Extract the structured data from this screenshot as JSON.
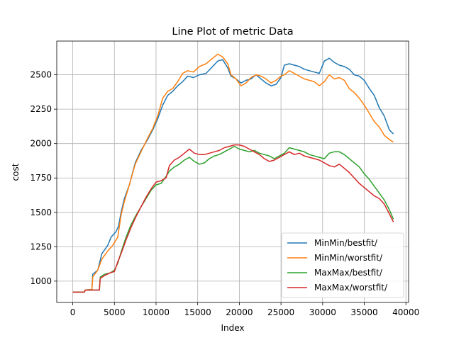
{
  "chart_data": {
    "type": "line",
    "title": "Line Plot of metric Data",
    "xlabel": "Index",
    "ylabel": "cost",
    "xlim": [
      -1920,
      40320
    ],
    "ylim": [
      845,
      2745
    ],
    "xticks": [
      0,
      5000,
      10000,
      15000,
      20000,
      25000,
      30000,
      35000,
      40000
    ],
    "yticks": [
      1000,
      1250,
      1500,
      1750,
      2000,
      2250,
      2500
    ],
    "grid": true,
    "legend_position": "lower right",
    "series": [
      {
        "name": "MinMin/bestfit/",
        "color": "#1f77b4",
        "points": [
          [
            0,
            920
          ],
          [
            1400,
            920
          ],
          [
            1500,
            935
          ],
          [
            2300,
            940
          ],
          [
            2400,
            1050
          ],
          [
            3000,
            1080
          ],
          [
            3500,
            1200
          ],
          [
            4200,
            1260
          ],
          [
            4600,
            1320
          ],
          [
            5200,
            1360
          ],
          [
            5500,
            1400
          ],
          [
            5800,
            1500
          ],
          [
            6200,
            1600
          ],
          [
            6800,
            1700
          ],
          [
            7500,
            1860
          ],
          [
            8200,
            1950
          ],
          [
            9000,
            2030
          ],
          [
            9600,
            2100
          ],
          [
            10200,
            2180
          ],
          [
            10800,
            2280
          ],
          [
            11400,
            2350
          ],
          [
            12000,
            2380
          ],
          [
            12600,
            2420
          ],
          [
            13200,
            2450
          ],
          [
            13800,
            2490
          ],
          [
            14500,
            2480
          ],
          [
            15200,
            2500
          ],
          [
            16000,
            2510
          ],
          [
            16800,
            2560
          ],
          [
            17400,
            2600
          ],
          [
            18000,
            2610
          ],
          [
            18600,
            2550
          ],
          [
            19000,
            2490
          ],
          [
            19600,
            2470
          ],
          [
            20200,
            2440
          ],
          [
            20800,
            2460
          ],
          [
            21400,
            2470
          ],
          [
            22000,
            2500
          ],
          [
            22600,
            2470
          ],
          [
            23200,
            2440
          ],
          [
            23800,
            2420
          ],
          [
            24400,
            2430
          ],
          [
            25000,
            2480
          ],
          [
            25400,
            2570
          ],
          [
            26000,
            2580
          ],
          [
            26600,
            2570
          ],
          [
            27200,
            2560
          ],
          [
            27800,
            2540
          ],
          [
            28400,
            2530
          ],
          [
            29000,
            2520
          ],
          [
            29600,
            2510
          ],
          [
            30200,
            2600
          ],
          [
            30800,
            2620
          ],
          [
            31400,
            2590
          ],
          [
            32000,
            2570
          ],
          [
            32600,
            2560
          ],
          [
            33200,
            2540
          ],
          [
            33800,
            2500
          ],
          [
            34400,
            2490
          ],
          [
            35000,
            2460
          ],
          [
            35600,
            2400
          ],
          [
            36200,
            2350
          ],
          [
            36800,
            2260
          ],
          [
            37400,
            2200
          ],
          [
            38000,
            2100
          ],
          [
            38500,
            2070
          ]
        ]
      },
      {
        "name": "MinMin/worstfit/",
        "color": "#ff7f0e",
        "points": [
          [
            0,
            920
          ],
          [
            1400,
            920
          ],
          [
            1500,
            935
          ],
          [
            2300,
            940
          ],
          [
            2400,
            1030
          ],
          [
            3000,
            1080
          ],
          [
            3500,
            1160
          ],
          [
            4200,
            1220
          ],
          [
            4800,
            1260
          ],
          [
            5400,
            1320
          ],
          [
            5800,
            1480
          ],
          [
            6200,
            1580
          ],
          [
            6800,
            1700
          ],
          [
            7500,
            1850
          ],
          [
            8200,
            1940
          ],
          [
            9000,
            2040
          ],
          [
            9600,
            2110
          ],
          [
            10200,
            2200
          ],
          [
            10800,
            2330
          ],
          [
            11400,
            2380
          ],
          [
            12000,
            2400
          ],
          [
            12600,
            2450
          ],
          [
            13200,
            2510
          ],
          [
            13800,
            2530
          ],
          [
            14500,
            2520
          ],
          [
            15200,
            2560
          ],
          [
            16000,
            2580
          ],
          [
            16800,
            2620
          ],
          [
            17400,
            2650
          ],
          [
            18000,
            2630
          ],
          [
            18600,
            2580
          ],
          [
            19000,
            2500
          ],
          [
            19600,
            2470
          ],
          [
            20200,
            2420
          ],
          [
            20800,
            2440
          ],
          [
            21400,
            2480
          ],
          [
            22000,
            2500
          ],
          [
            22600,
            2490
          ],
          [
            23200,
            2470
          ],
          [
            23800,
            2440
          ],
          [
            24400,
            2460
          ],
          [
            25000,
            2490
          ],
          [
            25400,
            2500
          ],
          [
            26000,
            2530
          ],
          [
            26600,
            2510
          ],
          [
            27200,
            2490
          ],
          [
            27800,
            2470
          ],
          [
            28400,
            2460
          ],
          [
            29000,
            2450
          ],
          [
            29600,
            2420
          ],
          [
            30200,
            2450
          ],
          [
            30800,
            2500
          ],
          [
            31400,
            2470
          ],
          [
            32000,
            2480
          ],
          [
            32600,
            2460
          ],
          [
            33200,
            2400
          ],
          [
            33800,
            2370
          ],
          [
            34400,
            2330
          ],
          [
            35000,
            2280
          ],
          [
            35600,
            2220
          ],
          [
            36200,
            2160
          ],
          [
            36800,
            2120
          ],
          [
            37400,
            2060
          ],
          [
            38000,
            2030
          ],
          [
            38500,
            2010
          ]
        ]
      },
      {
        "name": "MaxMax/bestfit/",
        "color": "#2ca02c",
        "points": [
          [
            0,
            920
          ],
          [
            1400,
            920
          ],
          [
            1500,
            935
          ],
          [
            3200,
            935
          ],
          [
            3300,
            1030
          ],
          [
            3800,
            1050
          ],
          [
            4500,
            1060
          ],
          [
            5000,
            1080
          ],
          [
            5400,
            1130
          ],
          [
            5800,
            1210
          ],
          [
            6400,
            1320
          ],
          [
            7000,
            1410
          ],
          [
            7600,
            1480
          ],
          [
            8200,
            1540
          ],
          [
            8800,
            1600
          ],
          [
            9400,
            1660
          ],
          [
            10000,
            1700
          ],
          [
            10600,
            1710
          ],
          [
            11200,
            1760
          ],
          [
            11600,
            1800
          ],
          [
            12200,
            1830
          ],
          [
            12800,
            1850
          ],
          [
            13400,
            1880
          ],
          [
            14000,
            1900
          ],
          [
            14600,
            1870
          ],
          [
            15200,
            1850
          ],
          [
            15800,
            1860
          ],
          [
            16400,
            1890
          ],
          [
            17000,
            1910
          ],
          [
            17600,
            1920
          ],
          [
            18200,
            1940
          ],
          [
            18800,
            1960
          ],
          [
            19400,
            1980
          ],
          [
            20000,
            1960
          ],
          [
            20600,
            1950
          ],
          [
            21200,
            1940
          ],
          [
            21800,
            1950
          ],
          [
            22400,
            1930
          ],
          [
            23000,
            1920
          ],
          [
            23600,
            1910
          ],
          [
            24200,
            1890
          ],
          [
            24800,
            1910
          ],
          [
            25400,
            1930
          ],
          [
            26000,
            1970
          ],
          [
            26600,
            1960
          ],
          [
            27200,
            1950
          ],
          [
            27800,
            1940
          ],
          [
            28400,
            1920
          ],
          [
            29000,
            1910
          ],
          [
            29600,
            1900
          ],
          [
            30200,
            1890
          ],
          [
            30800,
            1930
          ],
          [
            31400,
            1940
          ],
          [
            32000,
            1940
          ],
          [
            32600,
            1920
          ],
          [
            33200,
            1890
          ],
          [
            33800,
            1860
          ],
          [
            34400,
            1830
          ],
          [
            35000,
            1780
          ],
          [
            35600,
            1740
          ],
          [
            36200,
            1690
          ],
          [
            36800,
            1640
          ],
          [
            37400,
            1590
          ],
          [
            38000,
            1520
          ],
          [
            38500,
            1450
          ]
        ]
      },
      {
        "name": "MaxMax/worstfit/",
        "color": "#d62728",
        "points": [
          [
            0,
            920
          ],
          [
            1400,
            920
          ],
          [
            1500,
            935
          ],
          [
            3200,
            935
          ],
          [
            3300,
            1020
          ],
          [
            3800,
            1040
          ],
          [
            4500,
            1060
          ],
          [
            5000,
            1070
          ],
          [
            5400,
            1140
          ],
          [
            5800,
            1200
          ],
          [
            6400,
            1300
          ],
          [
            7000,
            1390
          ],
          [
            7600,
            1470
          ],
          [
            8200,
            1540
          ],
          [
            8800,
            1610
          ],
          [
            9400,
            1670
          ],
          [
            10000,
            1720
          ],
          [
            10600,
            1730
          ],
          [
            11200,
            1750
          ],
          [
            11600,
            1840
          ],
          [
            12200,
            1880
          ],
          [
            12800,
            1900
          ],
          [
            13400,
            1930
          ],
          [
            14000,
            1960
          ],
          [
            14600,
            1930
          ],
          [
            15200,
            1920
          ],
          [
            15800,
            1920
          ],
          [
            16400,
            1930
          ],
          [
            17000,
            1940
          ],
          [
            17600,
            1950
          ],
          [
            18200,
            1970
          ],
          [
            18800,
            1980
          ],
          [
            19400,
            1990
          ],
          [
            20000,
            1990
          ],
          [
            20600,
            1980
          ],
          [
            21200,
            1960
          ],
          [
            21800,
            1940
          ],
          [
            22400,
            1920
          ],
          [
            23000,
            1890
          ],
          [
            23600,
            1870
          ],
          [
            24200,
            1880
          ],
          [
            24800,
            1900
          ],
          [
            25400,
            1920
          ],
          [
            26000,
            1940
          ],
          [
            26600,
            1920
          ],
          [
            27200,
            1930
          ],
          [
            27800,
            1910
          ],
          [
            28400,
            1900
          ],
          [
            29000,
            1890
          ],
          [
            29600,
            1880
          ],
          [
            30200,
            1860
          ],
          [
            30800,
            1840
          ],
          [
            31400,
            1830
          ],
          [
            32000,
            1850
          ],
          [
            32600,
            1820
          ],
          [
            33200,
            1790
          ],
          [
            33800,
            1750
          ],
          [
            34400,
            1710
          ],
          [
            35000,
            1680
          ],
          [
            35600,
            1650
          ],
          [
            36200,
            1620
          ],
          [
            36800,
            1600
          ],
          [
            37400,
            1560
          ],
          [
            38000,
            1490
          ],
          [
            38500,
            1430
          ]
        ]
      }
    ]
  }
}
